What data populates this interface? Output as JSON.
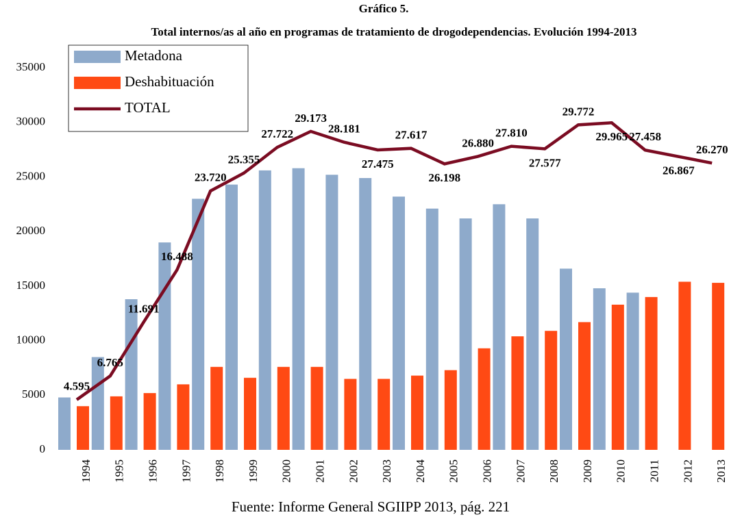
{
  "chart_data": {
    "type": "bar",
    "title": "Gráfico 5.",
    "subtitle": "Total internos/as al año en programas de tratamiento de  drogodependencias. Evolución 1994-2013",
    "source": "Fuente: Informe General SGIIPP 2013, pág. 221",
    "categories": [
      "1994",
      "1995",
      "1996",
      "1997",
      "1998",
      "1999",
      "2000",
      "2001",
      "2002",
      "2003",
      "2004",
      "2005",
      "2006",
      "2007",
      "2008",
      "2009",
      "2010",
      "2011",
      "2012",
      "2013"
    ],
    "series": [
      {
        "name": "Metadona",
        "type": "bar",
        "color": "#8eaacb",
        "values": [
          4800,
          8500,
          13800,
          19000,
          23000,
          24300,
          25600,
          25800,
          25200,
          24900,
          23200,
          22100,
          21200,
          22500,
          21200,
          16600,
          14800,
          14400,
          null,
          null
        ]
      },
      {
        "name": "Deshabituación",
        "type": "bar",
        "color": "#ff4a14",
        "values": [
          4000,
          4900,
          5200,
          6000,
          7600,
          6600,
          7600,
          7600,
          6500,
          6500,
          6800,
          7300,
          9300,
          10400,
          10900,
          11700,
          13300,
          14000,
          15400,
          15300
        ]
      },
      {
        "name": "TOTAL",
        "type": "line",
        "color": "#7b0c22",
        "values": [
          4595,
          6765,
          11691,
          16488,
          23720,
          25355,
          27722,
          29173,
          28181,
          27475,
          27617,
          26198,
          26880,
          27810,
          27577,
          29772,
          29965,
          27458,
          26867,
          26270
        ],
        "value_labels": [
          "4.595",
          "6.765",
          "11.691",
          "16.488",
          "23.720",
          "25.355",
          "27.722",
          "29.173",
          "28.181",
          "27.475",
          "27.617",
          "26.198",
          "26.880",
          "27.810",
          "27.577",
          "29.772",
          "29.965",
          "27.458",
          "26.867",
          "26.270"
        ]
      }
    ],
    "ylim": [
      0,
      35000
    ],
    "yticks": [
      0,
      5000,
      10000,
      15000,
      20000,
      25000,
      30000,
      35000
    ]
  }
}
